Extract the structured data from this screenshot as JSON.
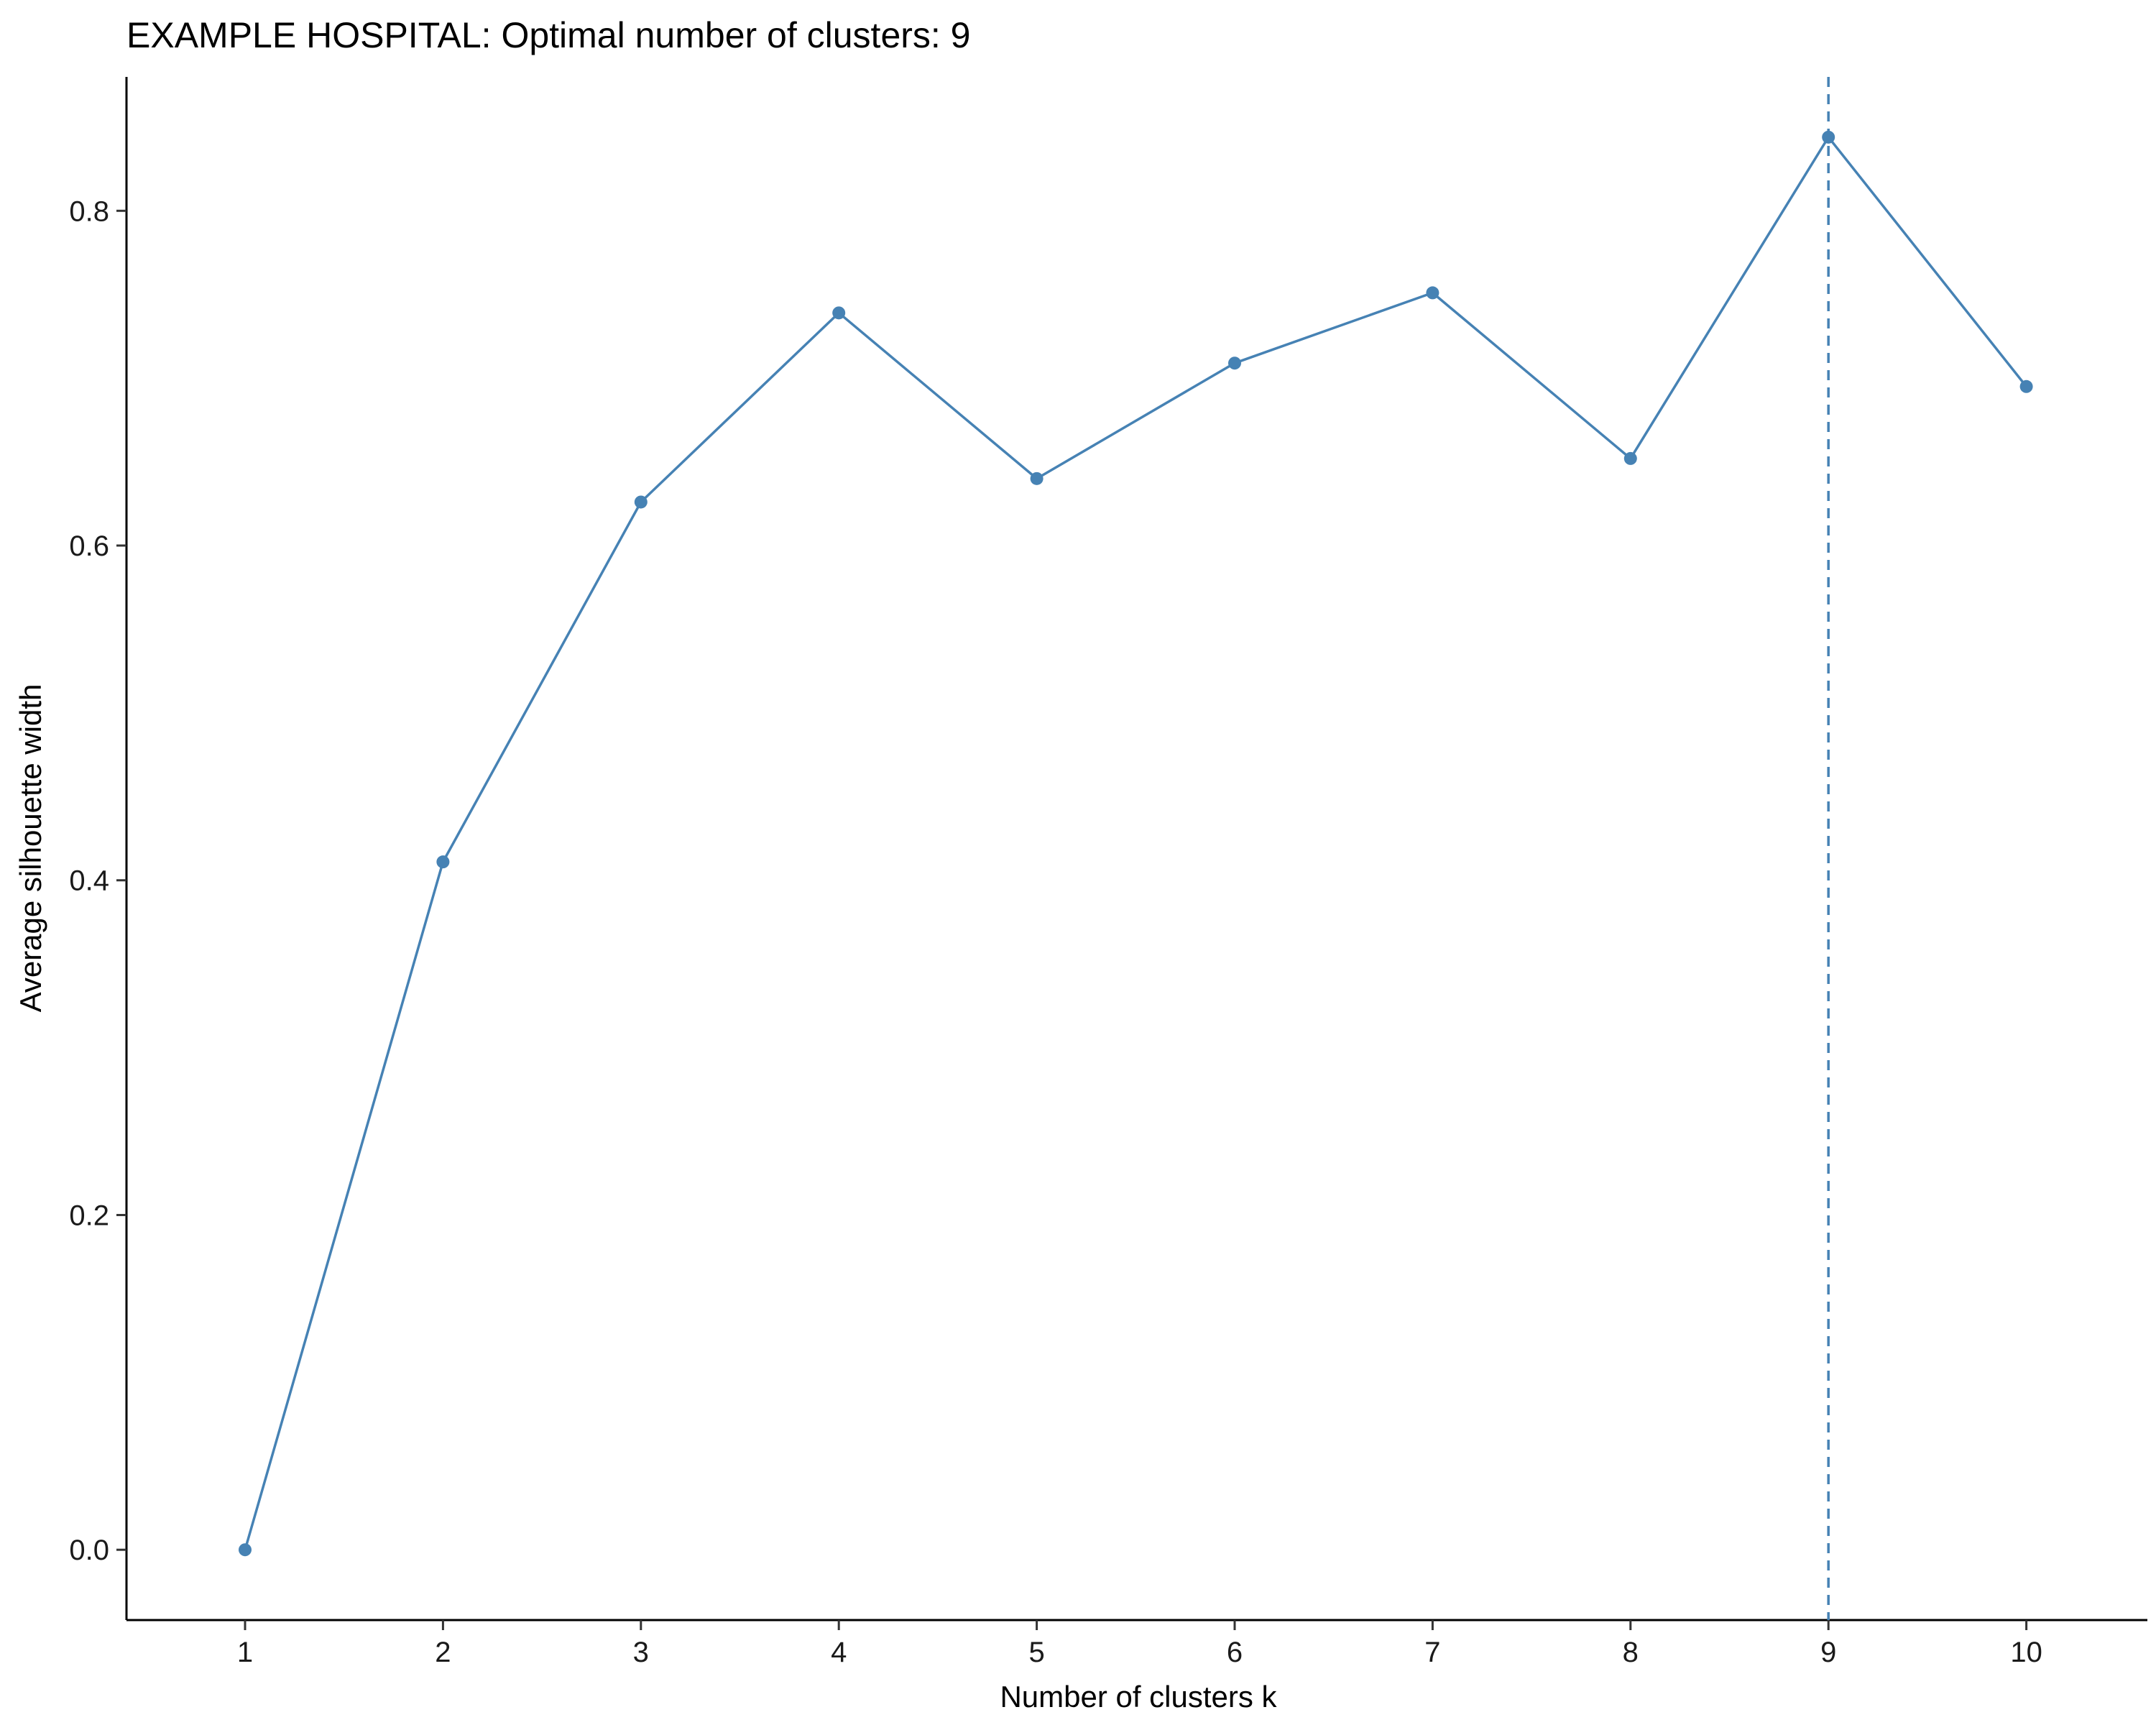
{
  "chart_data": {
    "type": "line",
    "title": "EXAMPLE HOSPITAL: Optimal number of clusters: 9",
    "xlabel": "Number of clusters k",
    "ylabel": "Average silhouette width",
    "x": [
      "1",
      "2",
      "3",
      "4",
      "5",
      "6",
      "7",
      "8",
      "9",
      "10"
    ],
    "series": [
      {
        "values": [
          0.0,
          0.411,
          0.626,
          0.739,
          0.64,
          0.709,
          0.751,
          0.652,
          0.844,
          0.695
        ]
      }
    ],
    "ylim": [
      -0.042,
      0.88
    ],
    "yticks": [
      "0.0",
      "0.2",
      "0.4",
      "0.6",
      "0.8"
    ],
    "ytick_values": [
      0.0,
      0.2,
      0.4,
      0.6,
      0.8
    ],
    "optimal_k": "9",
    "grid": false,
    "line_color": "#4682B4",
    "reference_line_style": "dashed"
  }
}
